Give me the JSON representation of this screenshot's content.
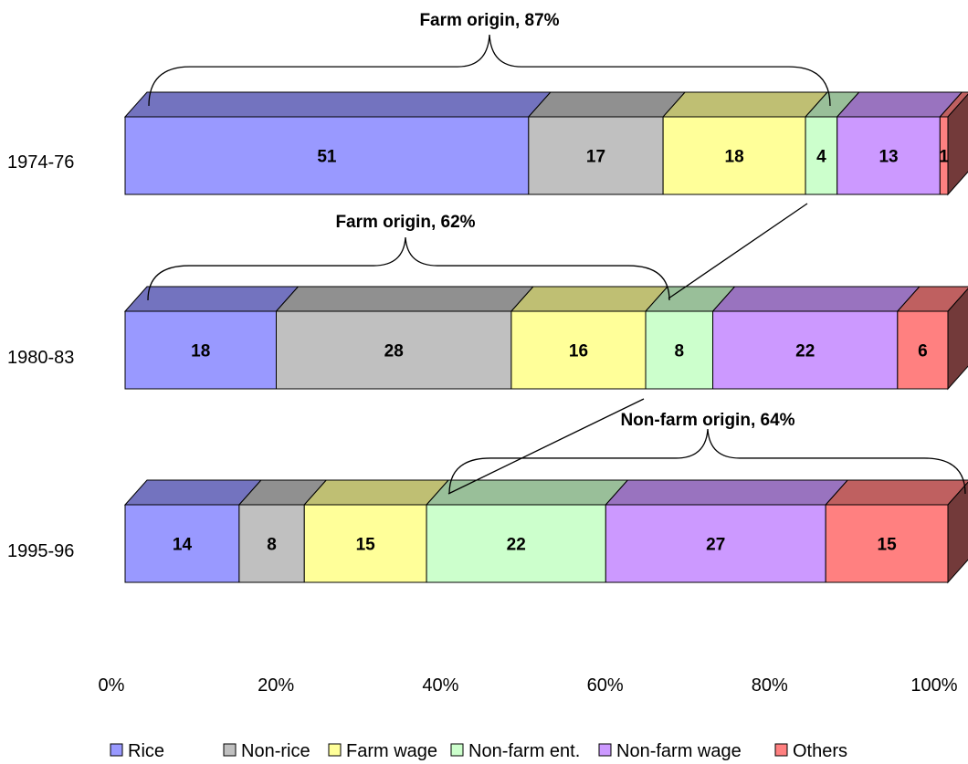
{
  "chart_data": {
    "type": "bar",
    "orientation": "horizontal",
    "stacked": "100%",
    "three_d": true,
    "categories": [
      "1974-76",
      "1980-83",
      "1995-96"
    ],
    "series": [
      {
        "name": "Rice",
        "color": "#9999ff",
        "values": [
          51,
          18,
          14
        ]
      },
      {
        "name": "Non-rice",
        "color": "#c0c0c0",
        "values": [
          17,
          28,
          8
        ]
      },
      {
        "name": "Farm wage",
        "color": "#ffff99",
        "values": [
          18,
          16,
          15
        ]
      },
      {
        "name": "Non-farm ent.",
        "color": "#ccffcc",
        "values": [
          4,
          8,
          22
        ]
      },
      {
        "name": "Non-farm wage",
        "color": "#cc99ff",
        "values": [
          13,
          22,
          27
        ]
      },
      {
        "name": "Others",
        "color": "#ff8080",
        "values": [
          1,
          6,
          15
        ]
      }
    ],
    "x_ticks": [
      "0%",
      "20%",
      "40%",
      "60%",
      "80%",
      "100%"
    ],
    "xlim": [
      0,
      100
    ],
    "legend_position": "bottom",
    "grid": false,
    "annotations": [
      {
        "text": "Farm origin, 87%",
        "category": "1974-76",
        "from": 0,
        "to": 88
      },
      {
        "text": "Farm origin, 62%",
        "category": "1980-83",
        "from": 0,
        "to": 68
      },
      {
        "text": "Non-farm origin, 64%",
        "category": "1995-96",
        "from": 41,
        "to": 100
      }
    ]
  }
}
